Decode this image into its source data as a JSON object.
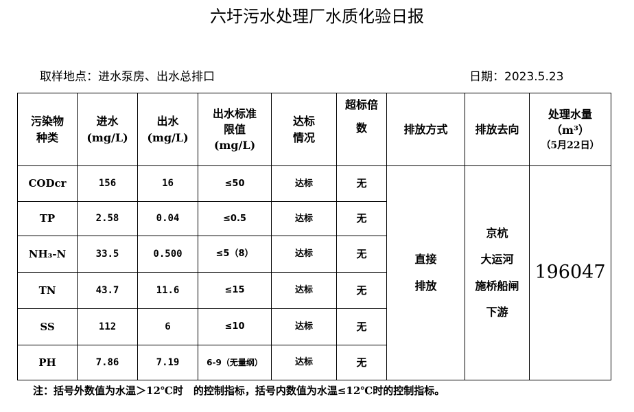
{
  "title": "六圩污水处理厂水质化验日报",
  "location": "取样地点：进水泵房、出水总排口",
  "date": "日期：2023.5.23",
  "headers": {
    "pollutant": [
      "污染物",
      "种类"
    ],
    "inflow": [
      "进水",
      "(mg/L)"
    ],
    "outflow": [
      "出水",
      "(mg/L)"
    ],
    "limit": [
      "出水标准",
      "限值",
      "(mg/L)"
    ],
    "status": [
      "达标",
      "情况"
    ],
    "exceed": [
      "超标倍",
      "数"
    ],
    "method": "排放方式",
    "destination": "排放去向",
    "volume": [
      "处理水量",
      "（m³）",
      "（5月22日）"
    ]
  },
  "rows": [
    {
      "name": "CODcr",
      "in": "156",
      "out": "16",
      "limit": "≤50",
      "status": "达标",
      "exceed": "无"
    },
    {
      "name": "TP",
      "in": "2.58",
      "out": "0.04",
      "limit": "≤0.5",
      "status": "达标",
      "exceed": "无"
    },
    {
      "name": "NH₃-N",
      "in": "33.5",
      "out": "0.500",
      "limit": "≤5（8）",
      "status": "达标",
      "exceed": "无"
    },
    {
      "name": "TN",
      "in": "43.7",
      "out": "11.6",
      "limit": "≤15",
      "status": "达标",
      "exceed": "无"
    },
    {
      "name": "SS",
      "in": "112",
      "out": "6",
      "limit": "≤10",
      "status": "达标",
      "exceed": "无"
    },
    {
      "name": "PH",
      "in": "7.86",
      "out": "7.19",
      "limit": "6-9（无量纲）",
      "status": "达标",
      "exceed": "无"
    }
  ],
  "method": [
    "直接",
    "排放"
  ],
  "destination": [
    "京杭",
    "大运河",
    "施桥船闸",
    "下游"
  ],
  "volume": "196047",
  "note": "注：括号外数值为水温＞12℃时　的控制指标，括号内数值为水温≤12℃时的控制指标。"
}
